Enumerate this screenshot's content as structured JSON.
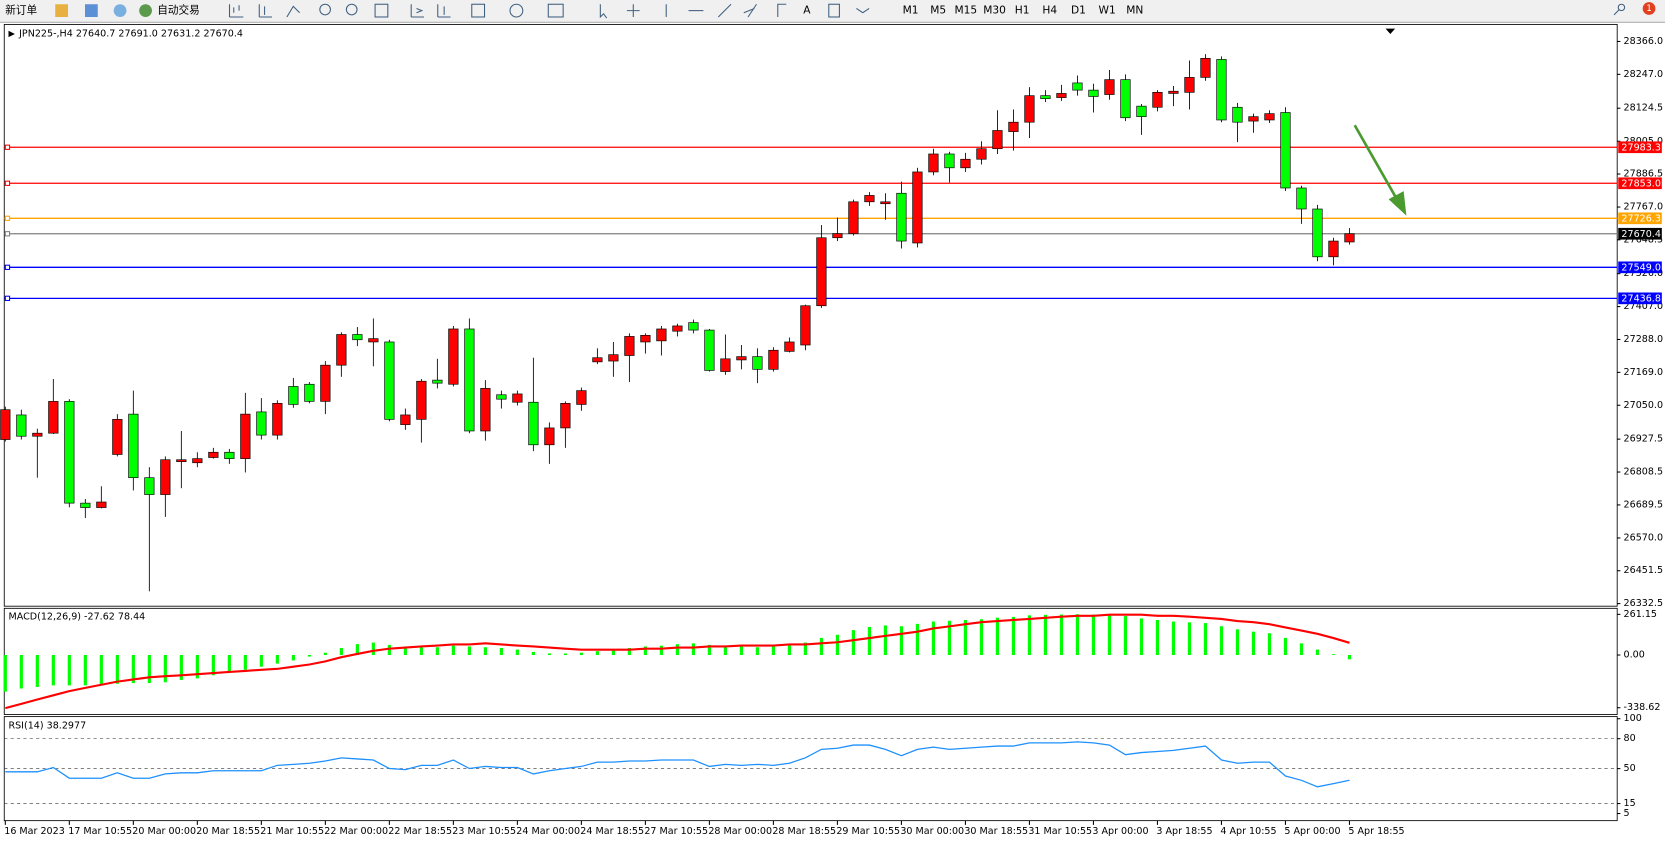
{
  "toolbar": {
    "new_order": "新订单",
    "auto_trading": "自动交易",
    "timeframes": [
      "M1",
      "M5",
      "M15",
      "M30",
      "H1",
      "H4",
      "D1",
      "W1",
      "MN"
    ],
    "badge": "1"
  },
  "chart_data": [
    {
      "type": "candlestick",
      "title": "JPN225-,H4 27640.7 27691.0 27631.2 27670.4",
      "categories": [
        "16 Mar 2023",
        null,
        null,
        null,
        "17 Mar 10:55",
        null,
        null,
        null,
        "20 Mar 00:00",
        null,
        null,
        null,
        "20 Mar 18:55",
        null,
        null,
        null,
        "21 Mar 10:55",
        null,
        null,
        null,
        "22 Mar 00:00",
        null,
        null,
        null,
        "22 Mar 18:55",
        null,
        null,
        null,
        "23 Mar 10:55",
        null,
        null,
        null,
        "24 Mar 00:00",
        null,
        null,
        null,
        "24 Mar 18:55",
        null,
        null,
        null,
        "27 Mar 10:55",
        null,
        null,
        null,
        "28 Mar 00:00",
        null,
        null,
        null,
        "28 Mar 18:55",
        null,
        null,
        null,
        "29 Mar 10:55",
        null,
        null,
        null,
        "30 Mar 00:00",
        null,
        null,
        null,
        "30 Mar 18:55",
        null,
        null,
        null,
        "31 Mar 10:55",
        null,
        null,
        null,
        "3 Apr 00:00",
        null,
        null,
        null,
        "3 Apr 18:55",
        null,
        null,
        null,
        "4 Apr 10:55",
        null,
        null,
        null,
        "5 Apr 00:00",
        null,
        null,
        null,
        "5 Apr 18:55"
      ],
      "open": [
        26926,
        27015,
        26938,
        26949,
        27064,
        26696,
        26680,
        26872,
        27018,
        26788,
        26727,
        26846,
        26842,
        26861,
        26880,
        26857,
        27026,
        26942,
        27118,
        27126,
        27064,
        27195,
        27306,
        27279,
        27279,
        26980,
        26999,
        27141,
        27126,
        27326,
        26957,
        27088,
        27061,
        27061,
        26907,
        26968,
        27053,
        27207,
        27210,
        27230,
        27279,
        27283,
        27318,
        27349,
        27322,
        27172,
        27214,
        27226,
        27180,
        27245,
        27268,
        27410,
        27656,
        27671,
        27786,
        27779,
        27817,
        27637,
        27894,
        27959,
        27909,
        27940,
        27978,
        28040,
        28074,
        28170,
        28163,
        28216,
        28190,
        28174,
        28228,
        28132,
        28128,
        28178,
        28182,
        28236,
        28301,
        28128,
        28078,
        28082,
        28109,
        27836,
        27760,
        27587,
        27640.7
      ],
      "high": [
        27045,
        27034,
        26965,
        27145,
        27072,
        26711,
        26757,
        27018,
        27103,
        26826,
        26865,
        26957,
        26880,
        26896,
        26892,
        27095,
        27076,
        27068,
        27149,
        27134,
        27210,
        27314,
        27333,
        27364,
        27287,
        27038,
        27145,
        27218,
        27337,
        27364,
        27141,
        27103,
        27103,
        27222,
        26988,
        27064,
        27114,
        27256,
        27279,
        27310,
        27310,
        27337,
        27345,
        27360,
        27326,
        27306,
        27268,
        27256,
        27260,
        27295,
        27414,
        27702,
        27729,
        27794,
        27821,
        27817,
        27859,
        27909,
        27978,
        27967,
        27963,
        28005,
        28117,
        28120,
        28201,
        28190,
        28209,
        28243,
        28213,
        28263,
        28247,
        28140,
        28190,
        28205,
        28297,
        28320,
        28312,
        28144,
        28105,
        28117,
        28128,
        27844,
        27775,
        27656,
        27691.0
      ],
      "low": [
        26919,
        26926,
        26788,
        26946,
        26681,
        26642,
        26677,
        26865,
        26742,
        26377,
        26646,
        26750,
        26826,
        26857,
        26838,
        26807,
        26926,
        26926,
        27041,
        27057,
        27018,
        27153,
        27264,
        27191,
        26992,
        26961,
        26915,
        27111,
        27118,
        26949,
        26922,
        27038,
        27049,
        26884,
        26838,
        26896,
        27030,
        27199,
        27153,
        27134,
        27237,
        27230,
        27299,
        27310,
        27172,
        27160,
        27180,
        27130,
        27172,
        27241,
        27249,
        27402,
        27644,
        27664,
        27771,
        27721,
        27617,
        27621,
        27882,
        27856,
        27894,
        27921,
        27959,
        27971,
        28017,
        28147,
        28151,
        28170,
        28109,
        28155,
        28078,
        28028,
        28113,
        28132,
        28120,
        28224,
        28074,
        28002,
        28036,
        28071,
        27825,
        27706,
        27571,
        27556,
        27631.2
      ],
      "close": [
        27034,
        26938,
        26949,
        27064,
        26696,
        26680,
        26700,
        26999,
        26788,
        26727,
        26853,
        26853,
        26857,
        26880,
        26857,
        27018,
        26942,
        27057,
        27053,
        27064,
        27195,
        27306,
        27287,
        27291,
        26999,
        27015,
        27137,
        27130,
        27326,
        26957,
        27111,
        27072,
        27091,
        26907,
        26968,
        27057,
        27103,
        27222,
        27233,
        27299,
        27303,
        27326,
        27337,
        27322,
        27176,
        27218,
        27226,
        27180,
        27249,
        27279,
        27410,
        27656,
        27671,
        27786,
        27809,
        27786,
        27644,
        27894,
        27959,
        27909,
        27940,
        27978,
        28044,
        28074,
        28170,
        28159,
        28178,
        28190,
        28167,
        28228,
        28090,
        28094,
        28182,
        28186,
        28236,
        28305,
        28082,
        28074,
        28094,
        28105,
        27836,
        27760,
        27587,
        27644,
        27670.4
      ],
      "up_color": "#ff0000",
      "down_color": "#00ff00",
      "ylim": [
        26327,
        28420
      ],
      "yticks": [
        {
          "value": 28366,
          "label": "28366.0"
        },
        {
          "value": 28247,
          "label": "28247.0"
        },
        28124.5,
        {
          "value": 28005,
          "label": "28005.0"
        },
        27886.5,
        {
          "value": 27767,
          "label": "27767.0"
        },
        27648.5,
        {
          "value": 27526,
          "label": "27526.0"
        },
        {
          "value": 27407,
          "label": "27407.0"
        },
        {
          "value": 27288,
          "label": "27288.0"
        },
        {
          "value": 27169,
          "label": "27169.0"
        },
        {
          "value": 27050,
          "label": "27050.0"
        },
        26927.5,
        26808.5,
        26689.5,
        {
          "value": 26570,
          "label": "26570.0"
        },
        26451.5,
        26332.5
      ],
      "levels": [
        {
          "value": 27983.3,
          "color": "#ff0000"
        },
        {
          "value": 27853,
          "label": "27853.0",
          "color": "#ff0000"
        },
        {
          "value": 27726.3,
          "color": "#ffa500"
        },
        {
          "value": 27670.4,
          "color": "#808080",
          "box_color": "#000000"
        },
        {
          "value": 27549,
          "label": "27549.0",
          "color": "#0000ff"
        },
        {
          "value": 27436.8,
          "color": "#0000ff"
        }
      ]
    },
    {
      "type": "macd",
      "title": "MACD(12,26,9) -27.62 78.44",
      "histogram": [
        -235,
        -215,
        -205,
        -195,
        -195,
        -195,
        -190,
        -185,
        -180,
        -180,
        -175,
        -160,
        -150,
        -130,
        -115,
        -95,
        -75,
        -55,
        -35,
        -10,
        15,
        45,
        70,
        80,
        65,
        55,
        50,
        50,
        60,
        55,
        50,
        45,
        35,
        20,
        10,
        10,
        15,
        25,
        35,
        45,
        55,
        60,
        70,
        75,
        65,
        60,
        55,
        50,
        55,
        65,
        80,
        110,
        130,
        160,
        180,
        190,
        185,
        200,
        215,
        220,
        225,
        230,
        240,
        245,
        255,
        258,
        260,
        262,
        260,
        258,
        250,
        235,
        225,
        215,
        210,
        205,
        185,
        165,
        150,
        140,
        110,
        75,
        35,
        5,
        -27.62
      ],
      "signal": [
        -341,
        -314,
        -286,
        -259,
        -232,
        -211,
        -191,
        -171,
        -157,
        -143,
        -136,
        -130,
        -123,
        -116,
        -109,
        -102,
        -95,
        -89,
        -75,
        -61,
        -41,
        -14,
        7,
        27,
        41,
        48,
        55,
        61,
        68,
        68,
        75,
        68,
        61,
        55,
        48,
        41,
        34,
        34,
        34,
        34,
        41,
        41,
        48,
        48,
        55,
        55,
        61,
        61,
        61,
        68,
        68,
        75,
        82,
        95,
        109,
        123,
        136,
        150,
        171,
        184,
        198,
        211,
        218,
        225,
        232,
        239,
        246,
        252,
        252,
        259,
        259,
        259,
        252,
        252,
        246,
        239,
        232,
        218,
        211,
        198,
        177,
        157,
        136,
        109,
        78.44
      ],
      "histogram_color": "#00ff00",
      "signal_color": "#ff0000",
      "ylim": [
        -382,
        300
      ],
      "yticks": [
        261.15,
        {
          "value": 0,
          "label": "0.00"
        },
        -338.62
      ]
    },
    {
      "type": "line",
      "title": "RSI(14) 38.2977",
      "values": [
        46.8,
        46.8,
        46.8,
        51.1,
        40.4,
        40.4,
        40.4,
        45.8,
        40.4,
        40.4,
        44.7,
        45.8,
        45.8,
        47.9,
        47.9,
        47.9,
        47.9,
        53.3,
        54.3,
        55.4,
        57.6,
        60.8,
        59.7,
        58.6,
        50.1,
        49.0,
        53.3,
        53.3,
        58.6,
        50.1,
        52.2,
        51.1,
        51.1,
        44.7,
        47.9,
        50.1,
        52.2,
        56.5,
        56.5,
        57.6,
        57.6,
        58.6,
        58.6,
        58.6,
        52.2,
        54.3,
        53.3,
        54.3,
        53.3,
        55.4,
        60.8,
        69.3,
        70.4,
        73.6,
        73.6,
        69.3,
        62.9,
        69.3,
        71.5,
        69.3,
        70.4,
        71.5,
        72.6,
        72.6,
        75.8,
        75.8,
        75.8,
        76.8,
        75.8,
        73.6,
        64.0,
        66.1,
        67.2,
        68.3,
        70.4,
        72.6,
        58.6,
        55.4,
        56.5,
        56.5,
        42.6,
        38.3,
        31.8,
        35.0,
        38.2977
      ],
      "color": "#1e90ff",
      "ylim": [
        0,
        100
      ],
      "yticks": [
        100,
        80,
        50,
        15,
        5
      ],
      "levels": [
        80,
        50,
        15
      ]
    }
  ]
}
